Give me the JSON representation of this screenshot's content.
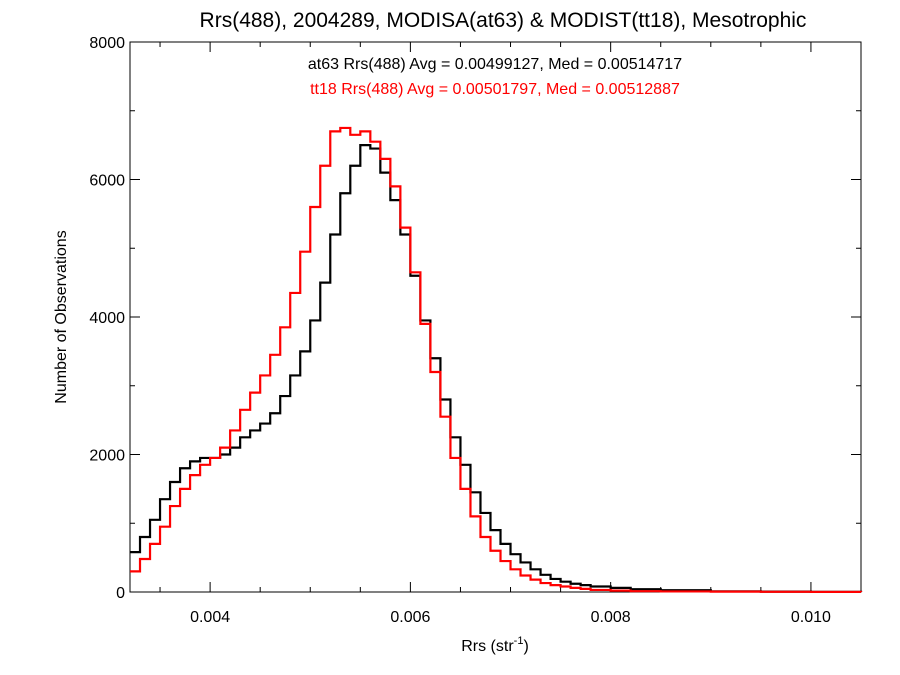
{
  "chart_data": {
    "type": "line",
    "step": true,
    "title": "Rrs(488), 2004289, MODISA(at63) & MODIST(tt18), Mesotrophic",
    "xlabel_main": "Rrs (str",
    "xlabel_sup": "-1",
    "xlabel_end": ")",
    "ylabel": "Number of Observations",
    "xlim": [
      0.0032,
      0.0105
    ],
    "ylim": [
      0,
      8000
    ],
    "x_ticks": [
      0.004,
      0.006,
      0.008,
      0.01
    ],
    "x_tick_labels": [
      "0.004",
      "0.006",
      "0.008",
      "0.010"
    ],
    "y_ticks": [
      0,
      2000,
      4000,
      6000,
      8000
    ],
    "y_tick_labels": [
      "0",
      "2000",
      "4000",
      "6000",
      "8000"
    ],
    "grid": false,
    "series": [
      {
        "name": "at63",
        "color": "#000000",
        "stats_text": "at63 Rrs(488) Avg = 0.00499127, Med = 0.00514717",
        "x": [
          0.0032,
          0.0033,
          0.0034,
          0.0035,
          0.0036,
          0.0037,
          0.0038,
          0.0039,
          0.004,
          0.0041,
          0.0042,
          0.0043,
          0.0044,
          0.0045,
          0.0046,
          0.0047,
          0.0048,
          0.0049,
          0.005,
          0.0051,
          0.0052,
          0.0053,
          0.0054,
          0.0055,
          0.0056,
          0.0057,
          0.0058,
          0.0059,
          0.006,
          0.0061,
          0.0062,
          0.0063,
          0.0064,
          0.0065,
          0.0066,
          0.0067,
          0.0068,
          0.0069,
          0.007,
          0.0071,
          0.0072,
          0.0073,
          0.0074,
          0.0075,
          0.0076,
          0.0077,
          0.0078,
          0.008,
          0.0082,
          0.0085,
          0.009,
          0.0095,
          0.01,
          0.0105
        ],
        "y": [
          580,
          800,
          1050,
          1350,
          1600,
          1800,
          1900,
          1950,
          1950,
          2000,
          2100,
          2250,
          2350,
          2450,
          2600,
          2850,
          3150,
          3500,
          3950,
          4500,
          5200,
          5800,
          6200,
          6500,
          6450,
          6100,
          5700,
          5200,
          4600,
          3950,
          3400,
          2800,
          2250,
          1850,
          1450,
          1150,
          900,
          700,
          550,
          430,
          330,
          250,
          190,
          150,
          120,
          100,
          80,
          60,
          40,
          25,
          10,
          5,
          2,
          0
        ]
      },
      {
        "name": "tt18",
        "color": "#ff0000",
        "stats_text": "tt18 Rrs(488) Avg = 0.00501797, Med = 0.00512887",
        "x": [
          0.0032,
          0.0033,
          0.0034,
          0.0035,
          0.0036,
          0.0037,
          0.0038,
          0.0039,
          0.004,
          0.0041,
          0.0042,
          0.0043,
          0.0044,
          0.0045,
          0.0046,
          0.0047,
          0.0048,
          0.0049,
          0.005,
          0.0051,
          0.0052,
          0.0053,
          0.0054,
          0.0055,
          0.0056,
          0.0057,
          0.0058,
          0.0059,
          0.006,
          0.0061,
          0.0062,
          0.0063,
          0.0064,
          0.0065,
          0.0066,
          0.0067,
          0.0068,
          0.0069,
          0.007,
          0.0071,
          0.0072,
          0.0073,
          0.0074,
          0.0075,
          0.0076,
          0.0077,
          0.0078,
          0.008,
          0.0082,
          0.0085,
          0.009,
          0.0095,
          0.01,
          0.0105
        ],
        "y": [
          300,
          480,
          700,
          950,
          1250,
          1500,
          1700,
          1850,
          1950,
          2100,
          2350,
          2650,
          2900,
          3150,
          3450,
          3850,
          4350,
          4950,
          5600,
          6200,
          6700,
          6750,
          6650,
          6700,
          6550,
          6300,
          5900,
          5300,
          4650,
          3900,
          3200,
          2550,
          1950,
          1500,
          1100,
          800,
          600,
          450,
          330,
          240,
          180,
          130,
          100,
          80,
          60,
          45,
          30,
          20,
          12,
          8,
          5,
          3,
          1,
          0
        ]
      }
    ]
  }
}
